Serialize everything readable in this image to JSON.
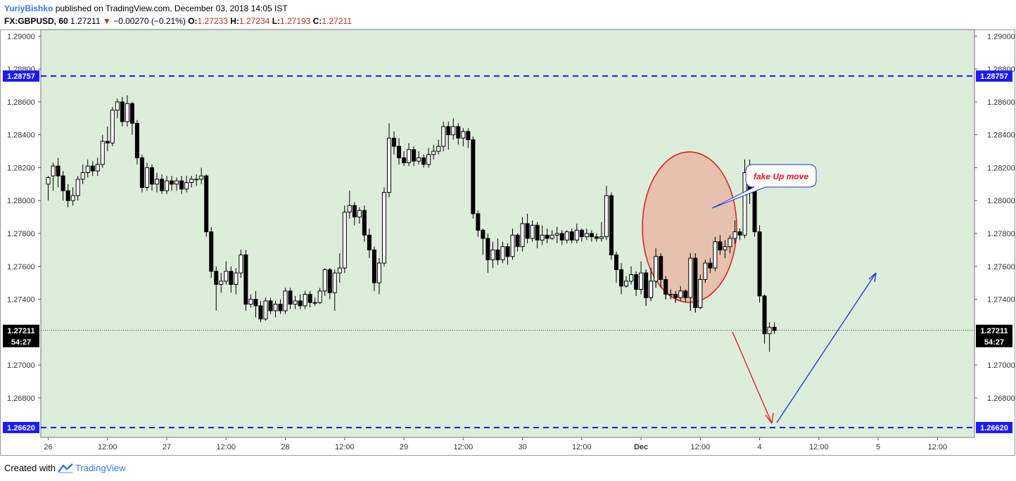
{
  "header": {
    "author": "YuriyBishko",
    "published": "published on TradingView.com, December 03, 2018 14:05 IST",
    "symbol": "FX:GBPUSD, 60",
    "last": "1.27211",
    "change": "−0.00270 (−0.21%)",
    "open_label": "O:",
    "open": "1.27233",
    "high_label": "H:",
    "high": "1.27234",
    "low_label": "L:",
    "low": "1.27193",
    "close_label": "C:",
    "close": "1.27211"
  },
  "footer": {
    "created_with": "Created with",
    "brand": "TradingView"
  },
  "colors": {
    "plot_bg": "#dcedd9",
    "level_line": "#1a1aff",
    "bear_candle": "#000000",
    "bull_candle": "#ffffff",
    "annotation_red": "#e01818",
    "annotation_blue": "#1a33d6",
    "ellipse_fill": "#e8b8a4"
  },
  "chart_data": {
    "type": "candlestick",
    "title": "",
    "symbol": "FX:GBPUSD",
    "interval": "60",
    "ylim": [
      1.2656,
      1.2904
    ],
    "y_ticks": [
      "1.29000",
      "1.28800",
      "1.28600",
      "1.28400",
      "1.28200",
      "1.28000",
      "1.27800",
      "1.27600",
      "1.27400",
      "1.27000",
      "1.26800"
    ],
    "x_ticks": [
      {
        "label": "26",
        "h": 0
      },
      {
        "label": "12:00",
        "h": 12
      },
      {
        "label": "27",
        "h": 24
      },
      {
        "label": "12:00",
        "h": 36
      },
      {
        "label": "28",
        "h": 48
      },
      {
        "label": "12:00",
        "h": 60
      },
      {
        "label": "29",
        "h": 72
      },
      {
        "label": "12:00",
        "h": 84
      },
      {
        "label": "30",
        "h": 96
      },
      {
        "label": "12:00",
        "h": 108
      },
      {
        "label": "Dec",
        "h": 120,
        "bold": true
      },
      {
        "label": "12:00",
        "h": 132
      },
      {
        "label": "4",
        "h": 144
      },
      {
        "label": "12:00",
        "h": 156
      },
      {
        "label": "5",
        "h": 168
      },
      {
        "label": "12:00",
        "h": 180
      }
    ],
    "xlim_hours": [
      -1.5,
      187.5
    ],
    "levels": [
      {
        "value": 1.28757,
        "label": "1.28757"
      },
      {
        "value": 1.2662,
        "label": "1.26620"
      }
    ],
    "current_price": {
      "value": 1.27211,
      "label": "1.27211",
      "countdown": "54:27"
    },
    "candles_start_hour": 0,
    "candles": [
      [
        1.281,
        1.2814,
        1.28,
        1.2815
      ],
      [
        1.2815,
        1.2821,
        1.2806,
        1.2823
      ],
      [
        1.2821,
        1.2815,
        1.2808,
        1.2826
      ],
      [
        1.2815,
        1.2806,
        1.28,
        1.2818
      ],
      [
        1.2806,
        1.28,
        1.2796,
        1.281
      ],
      [
        1.28,
        1.2803,
        1.2797,
        1.2808
      ],
      [
        1.2803,
        1.2813,
        1.28,
        1.2815
      ],
      [
        1.2813,
        1.2817,
        1.281,
        1.2822
      ],
      [
        1.2817,
        1.2821,
        1.2814,
        1.2825
      ],
      [
        1.2821,
        1.2818,
        1.2815,
        1.2824
      ],
      [
        1.2818,
        1.2822,
        1.2815,
        1.2826
      ],
      [
        1.2822,
        1.2836,
        1.282,
        1.284
      ],
      [
        1.2836,
        1.2835,
        1.283,
        1.2845
      ],
      [
        1.2835,
        1.2855,
        1.2833,
        1.2857
      ],
      [
        1.2855,
        1.286,
        1.285,
        1.2862
      ],
      [
        1.286,
        1.2848,
        1.2845,
        1.2863
      ],
      [
        1.2848,
        1.2859,
        1.2845,
        1.2864
      ],
      [
        1.2859,
        1.2847,
        1.284,
        1.286
      ],
      [
        1.2847,
        1.2826,
        1.2822,
        1.2849
      ],
      [
        1.2826,
        1.2808,
        1.2805,
        1.2828
      ],
      [
        1.2808,
        1.282,
        1.2806,
        1.2823
      ],
      [
        1.282,
        1.281,
        1.2806,
        1.2822
      ],
      [
        1.281,
        1.2813,
        1.2805,
        1.2817
      ],
      [
        1.2813,
        1.2806,
        1.2804,
        1.2816
      ],
      [
        1.2806,
        1.2812,
        1.2804,
        1.2815
      ],
      [
        1.2812,
        1.281,
        1.2806,
        1.2815
      ],
      [
        1.281,
        1.2812,
        1.2806,
        1.2814
      ],
      [
        1.2812,
        1.2807,
        1.2804,
        1.2815
      ],
      [
        1.2807,
        1.2811,
        1.2805,
        1.2815
      ],
      [
        1.2811,
        1.2813,
        1.2808,
        1.2815
      ],
      [
        1.2813,
        1.2813,
        1.2809,
        1.2816
      ],
      [
        1.2813,
        1.2815,
        1.281,
        1.282
      ],
      [
        1.2815,
        1.2781,
        1.2778,
        1.2816
      ],
      [
        1.2781,
        1.2757,
        1.2753,
        1.2784
      ],
      [
        1.2757,
        1.2749,
        1.2733,
        1.276
      ],
      [
        1.2749,
        1.2751,
        1.2744,
        1.2756
      ],
      [
        1.2751,
        1.2757,
        1.2749,
        1.2763
      ],
      [
        1.2757,
        1.2749,
        1.2744,
        1.276
      ],
      [
        1.2749,
        1.2756,
        1.2743,
        1.2759
      ],
      [
        1.2756,
        1.2767,
        1.2753,
        1.277
      ],
      [
        1.2767,
        1.2737,
        1.2733,
        1.277
      ],
      [
        1.2737,
        1.274,
        1.2735,
        1.2743
      ],
      [
        1.274,
        1.2736,
        1.2729,
        1.2745
      ],
      [
        1.2736,
        1.2728,
        1.2726,
        1.2739
      ],
      [
        1.2728,
        1.2739,
        1.2727,
        1.2741
      ],
      [
        1.2739,
        1.2733,
        1.2731,
        1.2741
      ],
      [
        1.2733,
        1.2737,
        1.2729,
        1.2739
      ],
      [
        1.2737,
        1.2733,
        1.2731,
        1.274
      ],
      [
        1.2733,
        1.2745,
        1.2731,
        1.2747
      ],
      [
        1.2745,
        1.2737,
        1.2734,
        1.2747
      ],
      [
        1.2737,
        1.2739,
        1.2734,
        1.2742
      ],
      [
        1.2739,
        1.2736,
        1.2734,
        1.2743
      ],
      [
        1.2736,
        1.2743,
        1.2734,
        1.2745
      ],
      [
        1.2743,
        1.2738,
        1.2735,
        1.2745
      ],
      [
        1.2738,
        1.2738,
        1.2736,
        1.2741
      ],
      [
        1.2738,
        1.2745,
        1.2737,
        1.2747
      ],
      [
        1.2745,
        1.2758,
        1.2742,
        1.2759
      ],
      [
        1.2758,
        1.2744,
        1.274,
        1.2759
      ],
      [
        1.2744,
        1.2756,
        1.2733,
        1.2758
      ],
      [
        1.2756,
        1.2759,
        1.275,
        1.2768
      ],
      [
        1.2759,
        1.2793,
        1.2756,
        1.2797
      ],
      [
        1.2793,
        1.2797,
        1.2789,
        1.2806
      ],
      [
        1.2797,
        1.279,
        1.2785,
        1.2799
      ],
      [
        1.279,
        1.2794,
        1.2786,
        1.2796
      ],
      [
        1.2794,
        1.2779,
        1.2775,
        1.2797
      ],
      [
        1.2779,
        1.277,
        1.2765,
        1.2783
      ],
      [
        1.277,
        1.275,
        1.2745,
        1.2772
      ],
      [
        1.275,
        1.2762,
        1.2743,
        1.2765
      ],
      [
        1.2762,
        1.2805,
        1.276,
        1.2808
      ],
      [
        1.2805,
        1.2838,
        1.2802,
        1.2847
      ],
      [
        1.2838,
        1.2833,
        1.2828,
        1.2842
      ],
      [
        1.2833,
        1.2826,
        1.2822,
        1.2838
      ],
      [
        1.2826,
        1.2823,
        1.2821,
        1.283
      ],
      [
        1.2823,
        1.2831,
        1.2821,
        1.2835
      ],
      [
        1.2831,
        1.2824,
        1.2821,
        1.2833
      ],
      [
        1.2824,
        1.2826,
        1.2822,
        1.283
      ],
      [
        1.2826,
        1.2822,
        1.282,
        1.2828
      ],
      [
        1.2822,
        1.2828,
        1.282,
        1.2832
      ],
      [
        1.2828,
        1.283,
        1.2825,
        1.2834
      ],
      [
        1.283,
        1.2833,
        1.2828,
        1.2837
      ],
      [
        1.2833,
        1.2845,
        1.283,
        1.2848
      ],
      [
        1.2845,
        1.284,
        1.2831,
        1.2848
      ],
      [
        1.284,
        1.2845,
        1.2837,
        1.285
      ],
      [
        1.2845,
        1.2838,
        1.2834,
        1.2847
      ],
      [
        1.2838,
        1.2842,
        1.2833,
        1.2844
      ],
      [
        1.2842,
        1.2837,
        1.2832,
        1.2844
      ],
      [
        1.2837,
        1.2792,
        1.2789,
        1.2839
      ],
      [
        1.2792,
        1.2782,
        1.2778,
        1.2794
      ],
      [
        1.2782,
        1.2777,
        1.2767,
        1.2783
      ],
      [
        1.2777,
        1.2764,
        1.2756,
        1.278
      ],
      [
        1.2764,
        1.277,
        1.2759,
        1.2775
      ],
      [
        1.277,
        1.2764,
        1.2761,
        1.2777
      ],
      [
        1.2764,
        1.2772,
        1.2762,
        1.2775
      ],
      [
        1.2772,
        1.2766,
        1.2761,
        1.2774
      ],
      [
        1.2766,
        1.2779,
        1.2764,
        1.2783
      ],
      [
        1.2779,
        1.2772,
        1.2769,
        1.278
      ],
      [
        1.2772,
        1.2786,
        1.2769,
        1.279
      ],
      [
        1.2786,
        1.2777,
        1.2774,
        1.2792
      ],
      [
        1.2777,
        1.2785,
        1.2775,
        1.2788
      ],
      [
        1.2785,
        1.2776,
        1.2771,
        1.2787
      ],
      [
        1.2776,
        1.2779,
        1.2773,
        1.2785
      ],
      [
        1.2779,
        1.2777,
        1.2774,
        1.2783
      ],
      [
        1.2777,
        1.2779,
        1.2776,
        1.2782
      ],
      [
        1.2779,
        1.278,
        1.2774,
        1.2784
      ],
      [
        1.278,
        1.2776,
        1.2773,
        1.2782
      ],
      [
        1.2776,
        1.2781,
        1.2774,
        1.2782
      ],
      [
        1.2781,
        1.2776,
        1.2774,
        1.2783
      ],
      [
        1.2776,
        1.2782,
        1.2774,
        1.2786
      ],
      [
        1.2782,
        1.2778,
        1.2775,
        1.2783
      ],
      [
        1.2778,
        1.278,
        1.2776,
        1.2783
      ],
      [
        1.278,
        1.2778,
        1.2775,
        1.2782
      ],
      [
        1.2778,
        1.2777,
        1.2775,
        1.278
      ],
      [
        1.2777,
        1.2778,
        1.2775,
        1.2787
      ],
      [
        1.2778,
        1.2803,
        1.2776,
        1.2809
      ],
      [
        1.2803,
        1.2767,
        1.2764,
        1.2805
      ],
      [
        1.2767,
        1.2758,
        1.275,
        1.2769
      ],
      [
        1.2758,
        1.2748,
        1.2743,
        1.2762
      ],
      [
        1.2748,
        1.2751,
        1.2747,
        1.2754
      ],
      [
        1.2751,
        1.2755,
        1.2749,
        1.276
      ],
      [
        1.2755,
        1.2746,
        1.2742,
        1.2757
      ],
      [
        1.2746,
        1.2756,
        1.2743,
        1.2763
      ],
      [
        1.2756,
        1.2741,
        1.2736,
        1.2758
      ],
      [
        1.2741,
        1.2751,
        1.2739,
        1.2759
      ],
      [
        1.2751,
        1.2766,
        1.2747,
        1.2771
      ],
      [
        1.2766,
        1.2752,
        1.2747,
        1.2768
      ],
      [
        1.2752,
        1.2743,
        1.274,
        1.2754
      ],
      [
        1.2743,
        1.2743,
        1.274,
        1.2746
      ],
      [
        1.2743,
        1.2741,
        1.2738,
        1.2745
      ],
      [
        1.2741,
        1.2745,
        1.2739,
        1.2748
      ],
      [
        1.2745,
        1.2741,
        1.2738,
        1.2746
      ],
      [
        1.2741,
        1.2765,
        1.2733,
        1.2768
      ],
      [
        1.2765,
        1.2735,
        1.2732,
        1.2768
      ],
      [
        1.2735,
        1.2752,
        1.2734,
        1.2755
      ],
      [
        1.2752,
        1.2762,
        1.275,
        1.2764
      ],
      [
        1.2762,
        1.2759,
        1.2756,
        1.2765
      ],
      [
        1.2759,
        1.2775,
        1.2757,
        1.2778
      ],
      [
        1.2775,
        1.277,
        1.2767,
        1.2779
      ],
      [
        1.277,
        1.2772,
        1.2765,
        1.2776
      ],
      [
        1.2772,
        1.2777,
        1.2768,
        1.2779
      ],
      [
        1.2777,
        1.2781,
        1.2774,
        1.2788
      ],
      [
        1.2781,
        1.2779,
        1.2776,
        1.2783
      ],
      [
        1.2779,
        1.2817,
        1.2777,
        1.2825
      ],
      [
        1.2817,
        1.2806,
        1.2798,
        1.2825
      ],
      [
        1.2806,
        1.2781,
        1.2778,
        1.2812
      ],
      [
        1.2781,
        1.2742,
        1.2738,
        1.2785
      ],
      [
        1.2742,
        1.2719,
        1.2713,
        1.2743
      ],
      [
        1.2719,
        1.2723,
        1.2708,
        1.2726
      ],
      [
        1.2723,
        1.2721,
        1.2719,
        1.2726
      ]
    ]
  },
  "annotations": {
    "callout_text": "fake Up move"
  }
}
